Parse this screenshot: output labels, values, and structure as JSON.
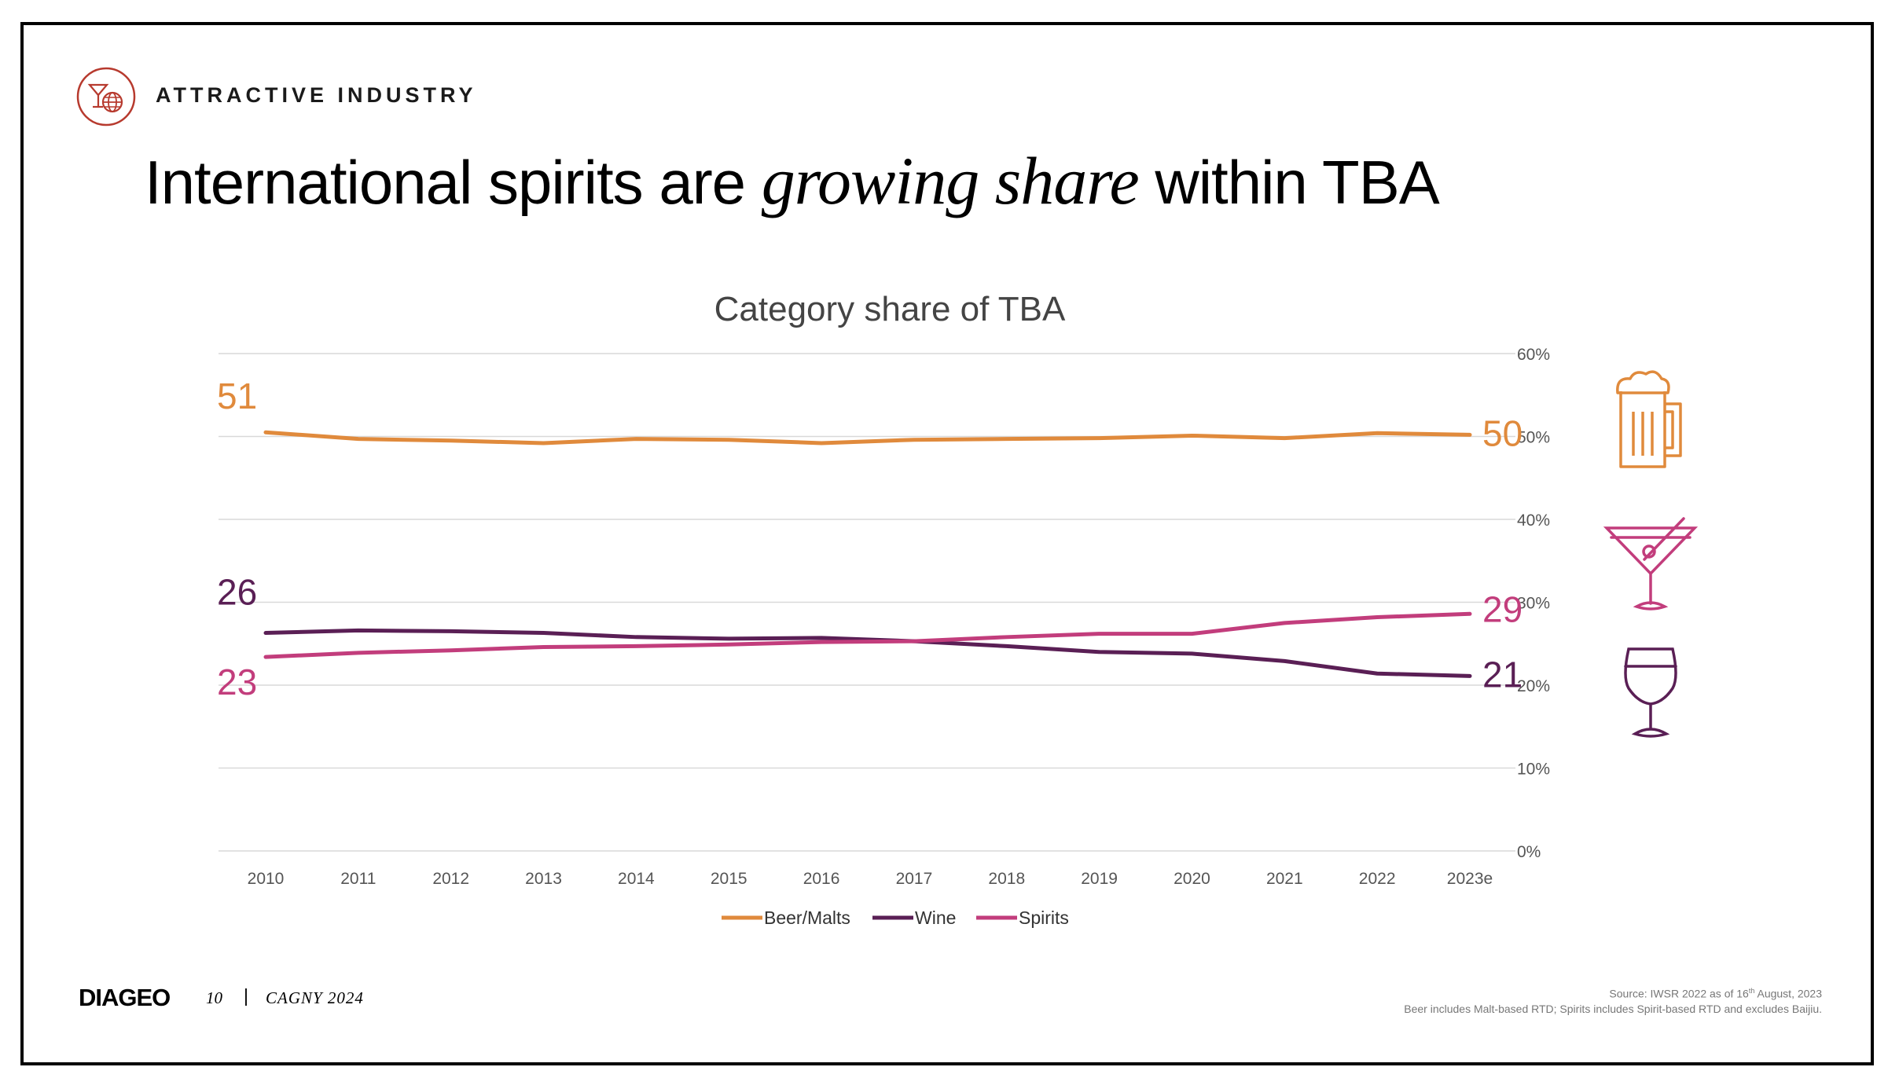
{
  "header": {
    "section_label": "ATTRACTIVE INDUSTRY",
    "title_part1": "International spirits are ",
    "title_emphasis": "growing share",
    "title_part2": " within TBA"
  },
  "chart_data": {
    "type": "line",
    "title": "Category share of TBA",
    "xlabel": "",
    "ylabel": "",
    "categories": [
      "2010",
      "2011",
      "2012",
      "2013",
      "2014",
      "2015",
      "2016",
      "2017",
      "2018",
      "2019",
      "2020",
      "2021",
      "2022",
      "2023e"
    ],
    "ylim": [
      0,
      60
    ],
    "yticks": [
      0,
      10,
      20,
      30,
      40,
      50,
      60
    ],
    "ytick_labels": [
      "0%",
      "10%",
      "20%",
      "30%",
      "40%",
      "50%",
      "60%"
    ],
    "y_axis_side": "right",
    "grid": true,
    "legend_position": "bottom-center",
    "series": [
      {
        "name": "Beer/Malts",
        "color": "#E08A3C",
        "values": [
          50.5,
          49.7,
          49.5,
          49.2,
          49.7,
          49.6,
          49.2,
          49.6,
          49.7,
          49.8,
          50.1,
          49.8,
          50.4,
          50.2
        ],
        "start_label": "51",
        "end_label": "50",
        "icon": "beer-mug-icon"
      },
      {
        "name": "Wine",
        "color": "#5A1F55",
        "values": [
          26.3,
          26.6,
          26.5,
          26.3,
          25.8,
          25.6,
          25.7,
          25.3,
          24.7,
          24.0,
          23.8,
          22.9,
          21.4,
          21.1
        ],
        "start_label": "26",
        "end_label": "21",
        "icon": "wine-glass-icon"
      },
      {
        "name": "Spirits",
        "color": "#C23D7C",
        "values": [
          23.4,
          23.9,
          24.2,
          24.6,
          24.7,
          24.9,
          25.2,
          25.3,
          25.8,
          26.2,
          26.2,
          27.5,
          28.2,
          28.6
        ],
        "start_label": "23",
        "end_label": "29",
        "icon": "martini-glass-icon"
      }
    ]
  },
  "footer": {
    "logo": "DIAGEO",
    "page": "10",
    "separator": "|",
    "event": "CAGNY 2024",
    "source_prefix": "Source: IWSR 2022 as of 16",
    "source_sup": "th",
    "source_suffix": " August, 2023",
    "source_line2": "Beer includes Malt-based RTD; Spirits includes Spirit-based RTD and excludes Baijiu."
  },
  "colors": {
    "grid": "#d9d9d9",
    "axis_text": "#555555",
    "section_icon": "#B73A2E"
  }
}
